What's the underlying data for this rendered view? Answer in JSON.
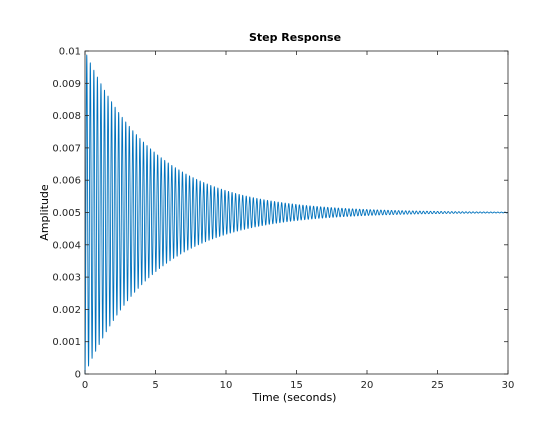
{
  "chart_data": {
    "type": "line",
    "title": "Step Response",
    "xlabel": "Time (seconds)",
    "ylabel": "Amplitude",
    "xlim": [
      0,
      30
    ],
    "ylim": [
      0,
      0.01
    ],
    "xticks": [
      0,
      5,
      10,
      15,
      20,
      25,
      30
    ],
    "xtick_labels": [
      "0",
      "5",
      "10",
      "15",
      "20",
      "25",
      "30"
    ],
    "yticks": [
      0,
      0.001,
      0.002,
      0.003,
      0.004,
      0.005,
      0.006,
      0.007,
      0.008,
      0.009,
      0.01
    ],
    "ytick_labels": [
      "0",
      "0.001",
      "0.002",
      "0.003",
      "0.004",
      "0.005",
      "0.006",
      "0.007",
      "0.008",
      "0.009",
      "0.01"
    ],
    "grid": false,
    "series_color": "#0072BD",
    "response_model": {
      "final_value": 0.005,
      "initial_amplitude": 0.005,
      "decay_rate_per_second": 0.2,
      "oscillation_frequency_rad_per_s": 25,
      "t_start": 0,
      "t_end": 30
    }
  }
}
